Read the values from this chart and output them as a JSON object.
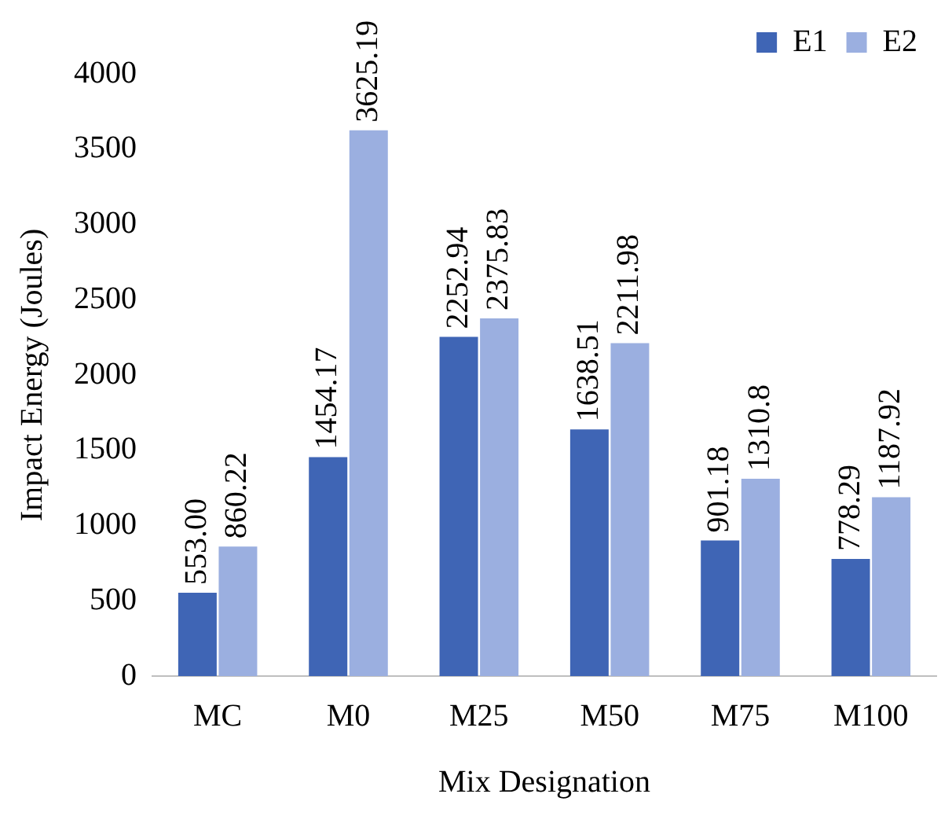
{
  "chart_data": {
    "type": "bar",
    "xlabel": "Mix Designation",
    "ylabel": "Impact Energy (Joules)",
    "categories": [
      "MC",
      "M0",
      "M25",
      "M50",
      "M75",
      "M100"
    ],
    "series": [
      {
        "name": "E1",
        "color": "#3f65b5",
        "values": [
          553.0,
          1454.17,
          2252.94,
          1638.51,
          901.18,
          778.29
        ],
        "value_labels": [
          "553.00",
          "1454.17",
          "2252.94",
          "1638.51",
          "901.18",
          "778.29"
        ]
      },
      {
        "name": "E2",
        "color": "#9bafe0",
        "values": [
          860.22,
          3625.19,
          2375.83,
          2211.98,
          1310.8,
          1187.92
        ],
        "value_labels": [
          "860.22",
          "3625.19",
          "2375.83",
          "2211.98",
          "1310.8",
          "1187.92"
        ]
      }
    ],
    "ylim": [
      0,
      4000
    ],
    "yticks": [
      0,
      500,
      1000,
      1500,
      2000,
      2500,
      3000,
      3500,
      4000
    ],
    "grid": false,
    "legend": "top right"
  }
}
